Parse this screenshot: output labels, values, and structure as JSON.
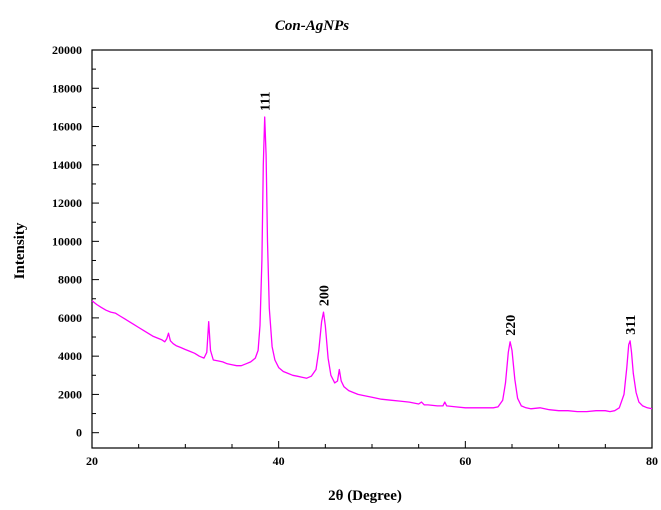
{
  "chart_data": {
    "type": "line",
    "title": "Con-AgNPs",
    "xlabel": "2θ (Degree)",
    "ylabel": "Intensity",
    "xlim": [
      20,
      80
    ],
    "ylim": [
      -800,
      20000
    ],
    "x_ticks": [
      20,
      40,
      60,
      80
    ],
    "x_minor_step": 5,
    "y_ticks": [
      0,
      2000,
      4000,
      6000,
      8000,
      10000,
      12000,
      14000,
      16000,
      18000,
      20000
    ],
    "y_minor_step": 1000,
    "grid": false,
    "series": [
      {
        "color": "#ff00ff",
        "points": [
          [
            20.0,
            6900
          ],
          [
            20.5,
            6700
          ],
          [
            21.0,
            6550
          ],
          [
            21.5,
            6400
          ],
          [
            22.0,
            6300
          ],
          [
            22.5,
            6250
          ],
          [
            23.0,
            6100
          ],
          [
            23.5,
            5950
          ],
          [
            24.0,
            5800
          ],
          [
            24.5,
            5650
          ],
          [
            25.0,
            5500
          ],
          [
            25.5,
            5350
          ],
          [
            26.0,
            5200
          ],
          [
            26.5,
            5050
          ],
          [
            27.0,
            4950
          ],
          [
            27.5,
            4850
          ],
          [
            27.8,
            4750
          ],
          [
            28.0,
            4900
          ],
          [
            28.2,
            5200
          ],
          [
            28.4,
            4800
          ],
          [
            28.7,
            4650
          ],
          [
            29.0,
            4550
          ],
          [
            29.5,
            4450
          ],
          [
            30.0,
            4350
          ],
          [
            30.5,
            4250
          ],
          [
            31.0,
            4150
          ],
          [
            31.5,
            4000
          ],
          [
            32.0,
            3900
          ],
          [
            32.3,
            4200
          ],
          [
            32.5,
            5800
          ],
          [
            32.7,
            4300
          ],
          [
            33.0,
            3800
          ],
          [
            33.5,
            3750
          ],
          [
            34.0,
            3700
          ],
          [
            34.5,
            3600
          ],
          [
            35.0,
            3550
          ],
          [
            35.5,
            3500
          ],
          [
            36.0,
            3500
          ],
          [
            36.5,
            3600
          ],
          [
            37.0,
            3700
          ],
          [
            37.5,
            3900
          ],
          [
            37.8,
            4300
          ],
          [
            38.0,
            5600
          ],
          [
            38.2,
            9000
          ],
          [
            38.35,
            14000
          ],
          [
            38.5,
            16500
          ],
          [
            38.65,
            14500
          ],
          [
            38.8,
            10000
          ],
          [
            39.0,
            6500
          ],
          [
            39.3,
            4500
          ],
          [
            39.6,
            3800
          ],
          [
            40.0,
            3400
          ],
          [
            40.5,
            3200
          ],
          [
            41.0,
            3100
          ],
          [
            41.5,
            3000
          ],
          [
            42.0,
            2950
          ],
          [
            42.5,
            2900
          ],
          [
            43.0,
            2850
          ],
          [
            43.5,
            2950
          ],
          [
            44.0,
            3300
          ],
          [
            44.3,
            4300
          ],
          [
            44.6,
            5800
          ],
          [
            44.8,
            6300
          ],
          [
            45.0,
            5600
          ],
          [
            45.3,
            3900
          ],
          [
            45.6,
            3000
          ],
          [
            46.0,
            2600
          ],
          [
            46.3,
            2700
          ],
          [
            46.5,
            3300
          ],
          [
            46.7,
            2700
          ],
          [
            47.0,
            2400
          ],
          [
            47.5,
            2200
          ],
          [
            48.0,
            2100
          ],
          [
            48.5,
            2000
          ],
          [
            49.0,
            1950
          ],
          [
            50.0,
            1850
          ],
          [
            51.0,
            1750
          ],
          [
            52.0,
            1700
          ],
          [
            53.0,
            1650
          ],
          [
            54.0,
            1600
          ],
          [
            55.0,
            1500
          ],
          [
            55.3,
            1600
          ],
          [
            55.6,
            1450
          ],
          [
            56.0,
            1450
          ],
          [
            57.0,
            1400
          ],
          [
            57.6,
            1400
          ],
          [
            57.8,
            1600
          ],
          [
            58.0,
            1400
          ],
          [
            59.0,
            1350
          ],
          [
            60.0,
            1300
          ],
          [
            61.0,
            1300
          ],
          [
            62.0,
            1300
          ],
          [
            63.0,
            1300
          ],
          [
            63.5,
            1350
          ],
          [
            64.0,
            1700
          ],
          [
            64.3,
            2600
          ],
          [
            64.6,
            4200
          ],
          [
            64.8,
            4750
          ],
          [
            65.0,
            4300
          ],
          [
            65.3,
            2800
          ],
          [
            65.6,
            1800
          ],
          [
            66.0,
            1400
          ],
          [
            66.5,
            1300
          ],
          [
            67.0,
            1250
          ],
          [
            68.0,
            1300
          ],
          [
            69.0,
            1200
          ],
          [
            70.0,
            1150
          ],
          [
            71.0,
            1150
          ],
          [
            72.0,
            1100
          ],
          [
            73.0,
            1100
          ],
          [
            74.0,
            1150
          ],
          [
            75.0,
            1150
          ],
          [
            75.5,
            1100
          ],
          [
            76.0,
            1150
          ],
          [
            76.5,
            1300
          ],
          [
            77.0,
            2000
          ],
          [
            77.3,
            3400
          ],
          [
            77.5,
            4600
          ],
          [
            77.65,
            4800
          ],
          [
            77.8,
            4200
          ],
          [
            78.0,
            3100
          ],
          [
            78.3,
            2100
          ],
          [
            78.6,
            1600
          ],
          [
            79.0,
            1400
          ],
          [
            79.5,
            1300
          ],
          [
            80.0,
            1250
          ]
        ]
      }
    ],
    "annotations": [
      {
        "text": "111",
        "x": 38.5
      },
      {
        "text": "200",
        "x": 44.8
      },
      {
        "text": "220",
        "x": 64.8
      },
      {
        "text": "311",
        "x": 77.65
      }
    ]
  }
}
